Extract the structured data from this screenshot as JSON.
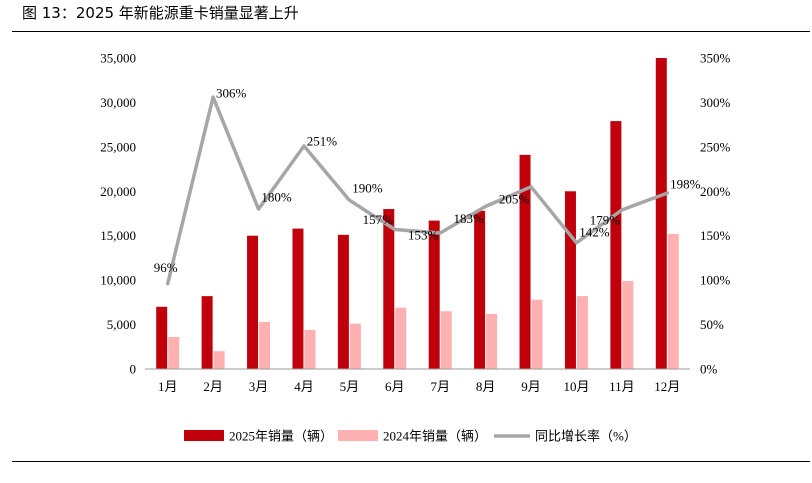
{
  "figure": {
    "title": "图 13：2025 年新能源重卡销量显著上升"
  },
  "colors": {
    "bar2025": "#c0000b",
    "bar2024": "#ffb0b0",
    "line": "#a6a6a6",
    "text": "#000000",
    "axis": "#9a9a9a"
  },
  "chart_data": {
    "type": "bar",
    "title": "",
    "categories": [
      "1月",
      "2月",
      "3月",
      "4月",
      "5月",
      "6月",
      "7月",
      "8月",
      "9月",
      "10月",
      "11月",
      "12月"
    ],
    "series": [
      {
        "name": "2025年销量（辆）",
        "type": "bar",
        "axis": "left",
        "values": [
          7000,
          8200,
          15000,
          15800,
          15100,
          18000,
          16700,
          17800,
          24100,
          20000,
          27900,
          35000
        ]
      },
      {
        "name": "2024年销量（辆）",
        "type": "bar",
        "axis": "left",
        "values": [
          3600,
          2000,
          5300,
          4400,
          5100,
          6900,
          6500,
          6200,
          7800,
          8200,
          9900,
          15200
        ]
      },
      {
        "name": "同比增长率（%）",
        "type": "line",
        "axis": "right",
        "values": [
          96,
          306,
          180,
          251,
          190,
          157,
          153,
          183,
          205,
          142,
          179,
          198
        ],
        "labels": [
          "96%",
          "306%",
          "180%",
          "251%",
          "190%",
          "157%",
          "153%",
          "183%",
          "205%",
          "142%",
          "179%",
          "198%"
        ]
      }
    ],
    "y_left": {
      "min": 0,
      "max": 35000,
      "ticks": [
        0,
        5000,
        10000,
        15000,
        20000,
        25000,
        30000,
        35000
      ],
      "tick_labels": [
        "0",
        "5,000",
        "10,000",
        "15,000",
        "20,000",
        "25,000",
        "30,000",
        "35,000"
      ]
    },
    "y_right": {
      "min": 0,
      "max": 350,
      "ticks": [
        0,
        50,
        100,
        150,
        200,
        250,
        300,
        350
      ],
      "tick_labels": [
        "0%",
        "50%",
        "100%",
        "150%",
        "200%",
        "250%",
        "300%",
        "350%"
      ]
    },
    "legend": {
      "position": "bottom",
      "labels": [
        "2025年销量（辆）",
        "2024年销量（辆）",
        "同比增长率（%）"
      ]
    }
  }
}
